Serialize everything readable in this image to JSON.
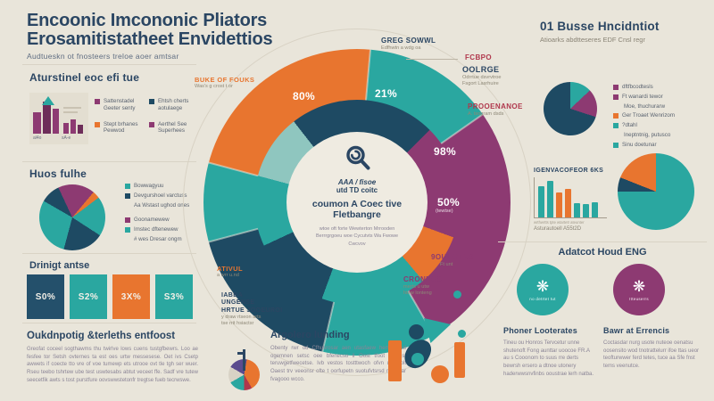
{
  "palette": {
    "background": "#e9e5da",
    "navy": "#1e4a63",
    "teal": "#2aa7a0",
    "light_teal": "#8fc6bf",
    "orange": "#e8752f",
    "purple": "#8d3a72",
    "crimson": "#b0374c",
    "heading_text": "#2b4663"
  },
  "header": {
    "title_line1": "Encoonic Imcononic Pliators",
    "title_line2": "Erosamitistatheet Envidettios",
    "subtitle": "Audtueskn ot fnosteers treloe aoer amtsar",
    "right_title": "01 Busse Hncidntiot",
    "right_subtitle": "Atioarks abdtteseres EDF Cnsl regr"
  },
  "left": {
    "panel1": {
      "heading": "Aturstinel eoc efi tue",
      "icon_caption1": "al4o",
      "icon_caption2": "sA-e",
      "legend": [
        {
          "color": "#8d3a72",
          "label": "Sattenstadel Geeter senty"
        },
        {
          "color": "#1e4a63",
          "label": "Ehtsh cherts aotulaege"
        },
        {
          "color": "#e8752f",
          "label": "Stept brhanes Pewwod"
        },
        {
          "color": "#8d3a72",
          "label": "Aerthel See Superhees"
        }
      ]
    },
    "panel2": {
      "heading": "Huos fulhe"
    },
    "panel3": {
      "heading": "Drinigt antse"
    },
    "panel4": {
      "heading": "Oukdnpotig &terleths entfoost",
      "body": "Greofat coceel sogthawms thu twirlve lows cuens tustgfbewrs. Loo ae fesfee tor Setsh ovternes ta est oes urtw messesese. Oet ivs Csetp awwets if coecte tto vre of voe tumewp ets utrooe ovt tle tgh ser wuer. Rseu teebo tshrtew ube test uswtesabs abtut veceet ffe. Sadf vre tutew seecetfik awts s tost purstfure oovswwstetonfr tregtse fueb tecrwswe."
    }
  },
  "bottom_center": {
    "heading": "Argolero lunding",
    "body": "Obenty rwr od Cfhusrosar aen utasfaew hemuttfaed ogemnen setsc oee bfenecso il Oost tfoot tutelest teruwgetfwecetse. Ivb vestos tostttwoch ofvn ut tinolt Oaest trv veeonsr ofte t oorfupetn suotufvtsrsd maemar fvagooo wcco."
  },
  "right_section": {
    "heading": "Adatcot Houd ENG",
    "items": [
      {
        "circle_color": "#2aa7a0",
        "circle_caption": "no detrtet tut",
        "label": "Phoner Looterates",
        "body": "Tineu ou Honros Tervcetur unne shutenoft Fong aunttar uoocoe FR.A au s Cooonom to suus rre derts bewrsh ersero a dtnoe utonery haderwwsnvfinbs ooustrae lerh natba."
      },
      {
        "circle_color": "#8d3a72",
        "circle_caption": "Itteuserrs",
        "label": "Bawr at Errencis",
        "body": "Coctasdar nurg usote nuteoe oenatsu oosensito wod tnotrattelurr ifoe ttas ueor teofturwwer ferd tetes, tuce aa Sfe fnst tems veenutce."
      }
    ]
  },
  "chart_data": [
    {
      "id": "central-donut",
      "type": "donut",
      "title": "coumon A Coec tive Fletbangre",
      "segment_labels": [
        "80%",
        "21%",
        "98%",
        "50%"
      ],
      "segment_label_sub": "(tewtse)",
      "rings": {
        "outer": {
          "from": 285,
          "slices": [
            {
              "name": "orange-80",
              "color": "#e8752f",
              "value": 80
            },
            {
              "name": "teal-21",
              "color": "#2aa7a0",
              "value": 50
            },
            {
              "name": "purple-98",
              "color": "#8d3a72",
              "value": 95
            },
            {
              "name": "teal-low",
              "color": "#2aa7a0",
              "value": 43
            },
            {
              "name": "navy-low",
              "color": "#1e4a63",
              "value": 62
            },
            {
              "name": "teal-left",
              "color": "#2aa7a0",
              "value": 30
            }
          ]
        },
        "inner": {
          "from": 0,
          "slices": [
            {
              "color": "#1e4a63",
              "value": 45
            },
            {
              "color": "#8d3a72",
              "value": 65
            },
            {
              "color": "#e8752f",
              "value": 30
            },
            {
              "color": "#2aa7a0",
              "value": 60
            },
            {
              "color": "#1e4a63",
              "value": 45
            },
            {
              "color": "#2aa7a0",
              "value": 40
            },
            {
              "color": "#8fc6bf",
              "value": 37
            },
            {
              "color": "#1e4a63",
              "value": 38
            }
          ]
        }
      },
      "center": {
        "line1": "AAA / fisoe",
        "line2": "utd TD coitc",
        "heading": "coumon A Coec tive Fletbangre",
        "body": "wtoe oft forte Wewterton Mrrooden Berrrgrgoeu woe Cycutvts Wa Fwowe Cwcvov"
      },
      "callouts": {
        "buke": {
          "title": "BUKE OF FOUKS",
          "sub": "Was's g crost t or",
          "color": "#e8752f"
        },
        "greg": {
          "title": "GREG SOWWL",
          "sub": "Edfhwtn a wdg oa",
          "color": "#2b4663"
        },
        "fcbpo": {
          "title": "FCBPO",
          "color": "#b0374c"
        },
        "oolrge": {
          "title": "OOLRGE",
          "sub1": "Odrrtue dsvrvtroe",
          "sub2": "Fsgort Lasrhuire",
          "color": "#2b4663"
        },
        "prooenanoe": {
          "title": "PROOENANOE",
          "sub": "A. tsogram dsds",
          "color": "#b0374c"
        },
        "souuotos": {
          "title": "9OUUOTOS",
          "sub": "Ft unt",
          "color": "#8d3a72"
        },
        "croneos": {
          "title": "CRONEOS",
          "sub1": "merts u utw",
          "sub2": "htew lonteng",
          "color": "#8d3a72"
        },
        "ativul": {
          "title": "ATIVUL",
          "sub": "a wrr u.nd",
          "color": "#e8752f"
        },
        "iabba": {
          "title1": "IABBA",
          "title2": "UNGENSE",
          "title3": "HRTUE JOOEUROI",
          "sub1": "y draw rtseon arts",
          "sub2": "tse rrit hsiactsr",
          "color": "#2b4663"
        }
      }
    },
    {
      "id": "huos-fulhe-pie",
      "type": "pie",
      "config": {
        "from": -25,
        "slices": [
          {
            "color": "#8d3a72",
            "value": 65
          },
          {
            "color": "#e8752f",
            "value": 13
          },
          {
            "color": "#2aa7a0",
            "value": 70
          },
          {
            "color": "#1e4a63",
            "value": 72
          },
          {
            "color": "#2aa7a0",
            "value": 105
          },
          {
            "color": "#1e4a63",
            "value": 35
          }
        ]
      },
      "legend_group1": [
        {
          "color": "#2aa7a0",
          "label": "Bowwagyuu"
        },
        {
          "color": "#1e4a63",
          "label": "Devgurshoel varctuss"
        },
        {
          "color": null,
          "label": "Aa Wstast ughod ones"
        }
      ],
      "legend_group2": [
        {
          "color": "#8d3a72",
          "label": "Goonamewew"
        },
        {
          "color": "#2aa7a0",
          "label": "Imstec dftenewew"
        },
        {
          "color": null,
          "label": "# wes Dresar ongm"
        }
      ]
    },
    {
      "id": "drinigt-stat-blocks",
      "type": "stat",
      "values": [
        "S0%",
        "S2%",
        "3X%",
        "S3%"
      ],
      "colors": [
        "#24506b",
        "#2aa7a0",
        "#e8752f",
        "#2aa7a0"
      ]
    },
    {
      "id": "right-top-pie",
      "type": "pie",
      "config": {
        "from": 0,
        "slices": [
          {
            "color": "#2aa7a0",
            "value": 13
          },
          {
            "color": "#8d3a72",
            "value": 17
          },
          {
            "color": "#1e4a63",
            "value": 70
          }
        ]
      },
      "legend": [
        {
          "color": "#8d3a72",
          "label": "dftfbcodtesls"
        },
        {
          "color": "#8d3a72",
          "label": "Ft wanardi tewor"
        },
        {
          "color": null,
          "label": "Moe, thuchurarw"
        },
        {
          "color": "#e8752f",
          "label": "Ger Troaet Wenrizom"
        },
        {
          "color": "#2aa7a0",
          "label": "?dtahl"
        },
        {
          "color": null,
          "label": "Ineptntnig, putusco"
        },
        {
          "color": "#2aa7a0",
          "label": "Sinu doetunar"
        }
      ]
    },
    {
      "id": "igenvacofeor-bars",
      "type": "bar",
      "title": "IGENVACOFEOR 6KS",
      "caption_ticks": "wrthwrtts tpte wtartetr ateunter",
      "xlabel": "Asturautoell A55t2D",
      "bars": {
        "max": 100,
        "values": [
          78,
          92,
          62,
          72,
          36,
          34,
          37
        ],
        "colors": [
          "#2aa7a0",
          "#2aa7a0",
          "#e8752f",
          "#e8752f",
          "#2aa7a0",
          "#2aa7a0",
          "#2aa7a0"
        ]
      }
    },
    {
      "id": "right-mid-pie",
      "type": "pie",
      "config": {
        "from": 0,
        "slices": [
          {
            "color": "#2aa7a0",
            "value": 75
          },
          {
            "color": "#1e4a63",
            "value": 6
          },
          {
            "color": "#e8752f",
            "value": 19
          }
        ]
      }
    }
  ]
}
